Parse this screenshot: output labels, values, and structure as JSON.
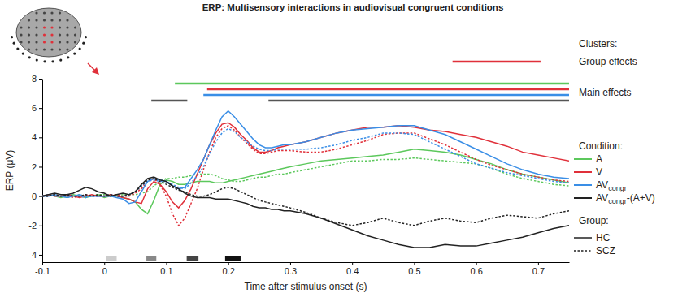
{
  "chart_data": {
    "type": "line",
    "title": "ERP: Multisensory interactions in audiovisual congruent conditions",
    "x_label": "Time after stimulus onset (s)",
    "y_label": "ERP (μV)",
    "xlim": [
      -0.1,
      0.75
    ],
    "xticks": [
      -0.1,
      0,
      0.1,
      0.2,
      0.3,
      0.4,
      0.5,
      0.6,
      0.7
    ],
    "ylim": [
      -4.5,
      8
    ],
    "yticks": [
      -4,
      -2,
      0,
      2,
      4,
      6,
      8
    ],
    "legend": "right",
    "x": [
      -0.1,
      -0.09,
      -0.08,
      -0.07,
      -0.06,
      -0.05,
      -0.04,
      -0.03,
      -0.02,
      -0.01,
      0,
      0.01,
      0.02,
      0.03,
      0.04,
      0.05,
      0.06,
      0.07,
      0.08,
      0.09,
      0.1,
      0.11,
      0.12,
      0.13,
      0.14,
      0.15,
      0.16,
      0.17,
      0.18,
      0.19,
      0.2,
      0.21,
      0.22,
      0.23,
      0.24,
      0.25,
      0.26,
      0.27,
      0.28,
      0.29,
      0.3,
      0.325,
      0.35,
      0.375,
      0.4,
      0.425,
      0.45,
      0.475,
      0.5,
      0.525,
      0.55,
      0.575,
      0.6,
      0.625,
      0.65,
      0.675,
      0.7,
      0.725,
      0.75
    ],
    "series": [
      {
        "name": "A",
        "group": "HC",
        "color": "#5cc85c",
        "line_style": "solid",
        "values": [
          0,
          0.1,
          0,
          -0.1,
          0,
          0.1,
          0,
          -0.1,
          0,
          0.1,
          -0.1,
          0,
          0.1,
          -0.1,
          -0.2,
          -0.4,
          -0.9,
          -1.2,
          -0.3,
          0.8,
          1.1,
          1.0,
          0.8,
          0.8,
          0.9,
          1.0,
          1.0,
          1.0,
          0.9,
          0.9,
          1.0,
          1.1,
          1.2,
          1.3,
          1.4,
          1.5,
          1.6,
          1.7,
          1.8,
          1.9,
          2.0,
          2.2,
          2.4,
          2.5,
          2.6,
          2.7,
          2.8,
          3.0,
          3.2,
          3.1,
          3.0,
          2.8,
          2.5,
          2.2,
          1.8,
          1.5,
          1.3,
          1.1,
          0.9
        ]
      },
      {
        "name": "A",
        "group": "SCZ",
        "color": "#5cc85c",
        "line_style": "dotted",
        "values": [
          0,
          0,
          0.1,
          0,
          -0.1,
          0,
          0.1,
          0,
          0,
          0.1,
          0.1,
          0,
          0,
          0.1,
          0.1,
          0.1,
          0.2,
          0.3,
          0.7,
          1.0,
          1.2,
          1.2,
          1.3,
          1.3,
          1.4,
          1.5,
          1.5,
          1.5,
          1.4,
          1.2,
          1.1,
          1.0,
          1.0,
          1.1,
          1.2,
          1.3,
          1.3,
          1.4,
          1.5,
          1.5,
          1.6,
          1.8,
          2.0,
          2.2,
          2.4,
          2.4,
          2.5,
          2.5,
          2.6,
          2.5,
          2.4,
          2.3,
          2.2,
          1.9,
          1.5,
          1.2,
          1.0,
          0.8,
          0.7
        ]
      },
      {
        "name": "V",
        "group": "HC",
        "color": "#e0303a",
        "line_style": "solid",
        "values": [
          0,
          0.1,
          0,
          0,
          0.1,
          0,
          -0.1,
          0,
          0.1,
          0,
          0,
          0.1,
          0,
          -0.1,
          -0.2,
          -0.4,
          -0.5,
          0.5,
          1.0,
          0.8,
          0.3,
          -0.4,
          -0.8,
          -0.3,
          0.5,
          1.5,
          2.5,
          3.5,
          4.3,
          4.9,
          5.0,
          4.7,
          4.2,
          3.8,
          3.3,
          3.0,
          3.0,
          3.1,
          3.3,
          3.4,
          3.5,
          3.7,
          4.0,
          4.3,
          4.5,
          4.7,
          4.7,
          4.8,
          4.7,
          4.5,
          4.4,
          4.2,
          4.0,
          3.7,
          3.4,
          3.0,
          2.8,
          2.6,
          2.4
        ]
      },
      {
        "name": "V",
        "group": "SCZ",
        "color": "#e0303a",
        "line_style": "dotted",
        "values": [
          0,
          0,
          0.1,
          0,
          0,
          -0.1,
          0,
          0.1,
          0,
          0,
          0,
          0,
          0.1,
          0,
          0,
          0.2,
          0.5,
          1.0,
          1.2,
          0.8,
          0,
          -1.2,
          -2.0,
          -1.5,
          -0.5,
          0.5,
          1.8,
          3.0,
          4.0,
          4.6,
          4.8,
          4.5,
          4.0,
          3.6,
          3.2,
          2.9,
          2.9,
          3.0,
          3.1,
          3.1,
          3.1,
          3.0,
          3.0,
          3.2,
          3.5,
          3.8,
          4.2,
          4.3,
          4.3,
          3.9,
          3.5,
          3.0,
          2.5,
          2.1,
          1.8,
          1.5,
          1.3,
          1.1,
          1.0
        ]
      },
      {
        "name": "AVcongr",
        "group": "HC",
        "color": "#3a8ee6",
        "line_style": "solid",
        "values": [
          0,
          0,
          0.1,
          0,
          -0.1,
          0,
          0.1,
          0,
          0,
          0,
          0,
          0,
          -0.1,
          -0.2,
          -0.5,
          -0.4,
          0.3,
          1.0,
          1.2,
          1.1,
          1.0,
          0.7,
          0.5,
          0.6,
          1.2,
          1.8,
          2.5,
          3.5,
          4.5,
          5.4,
          5.8,
          5.4,
          4.9,
          4.4,
          3.9,
          3.5,
          3.3,
          3.3,
          3.4,
          3.5,
          3.5,
          3.7,
          4.0,
          4.3,
          4.5,
          4.6,
          4.7,
          4.8,
          4.8,
          4.5,
          4.2,
          3.7,
          3.2,
          2.7,
          2.2,
          1.8,
          1.5,
          1.3,
          1.2
        ]
      },
      {
        "name": "AVcongr",
        "group": "SCZ",
        "color": "#3a8ee6",
        "line_style": "dotted",
        "values": [
          0,
          0.1,
          0,
          0,
          0.1,
          0,
          0,
          -0.1,
          0,
          0,
          0,
          0.1,
          0,
          0,
          0.1,
          0.3,
          0.7,
          1.0,
          1.1,
          1.0,
          1.0,
          0.8,
          0.6,
          0.5,
          0.9,
          1.4,
          2.0,
          2.9,
          3.7,
          4.3,
          4.6,
          4.4,
          4.0,
          3.7,
          3.4,
          3.2,
          3.1,
          3.1,
          3.2,
          3.2,
          3.2,
          3.2,
          3.3,
          3.5,
          3.8,
          4.0,
          4.3,
          4.3,
          4.2,
          3.7,
          3.2,
          2.7,
          2.2,
          1.9,
          1.6,
          1.4,
          1.2,
          1.0,
          0.9
        ]
      },
      {
        "name": "AVcongr-(A+V)",
        "group": "HC",
        "color": "#222222",
        "line_style": "solid",
        "values": [
          0,
          0.1,
          0.2,
          0.1,
          0.1,
          0.2,
          0.4,
          0.6,
          0.5,
          0.3,
          0.2,
          0,
          0.1,
          0.2,
          0.1,
          0.3,
          0.8,
          1.2,
          1.3,
          1.1,
          1.0,
          0.7,
          0.5,
          0.2,
          0,
          -0.1,
          -0.1,
          -0.1,
          -0.2,
          -0.2,
          -0.2,
          -0.3,
          -0.4,
          -0.5,
          -0.7,
          -0.8,
          -0.8,
          -0.9,
          -0.9,
          -1.0,
          -1.0,
          -1.2,
          -1.5,
          -1.9,
          -2.3,
          -2.7,
          -3.0,
          -3.3,
          -3.5,
          -3.5,
          -3.3,
          -3.4,
          -3.4,
          -3.2,
          -3.0,
          -2.8,
          -2.5,
          -2.2,
          -2.0
        ]
      },
      {
        "name": "AVcongr-(A+V)",
        "group": "SCZ",
        "color": "#222222",
        "line_style": "dotted",
        "values": [
          0,
          0,
          0.1,
          0,
          0.1,
          0,
          0,
          0.1,
          0,
          0.1,
          0,
          0.1,
          0,
          0,
          0.1,
          0.3,
          0.7,
          1.1,
          1.2,
          1.0,
          0.8,
          0.6,
          0.4,
          0.3,
          0.1,
          0,
          0,
          0.1,
          0.3,
          0.5,
          0.6,
          0.5,
          0.3,
          0.1,
          -0.1,
          -0.3,
          -0.4,
          -0.5,
          -0.6,
          -0.7,
          -0.8,
          -1.1,
          -1.5,
          -1.8,
          -2.0,
          -1.8,
          -1.5,
          -1.8,
          -2.0,
          -1.7,
          -1.5,
          -1.7,
          -1.8,
          -1.5,
          -1.3,
          -1.4,
          -1.5,
          -1.2,
          -1.0
        ]
      }
    ],
    "legend_titles": {
      "condition": "Condition:",
      "group": "Group:"
    },
    "conditions": [
      {
        "name": "A",
        "color": "#5cc85c"
      },
      {
        "name": "V",
        "color": "#e0303a"
      },
      {
        "name": "AV",
        "subscript": "congr",
        "color": "#3a8ee6"
      },
      {
        "name": "AV",
        "subscript": "congr",
        "suffix": "-(A+V)",
        "color": "#222222"
      }
    ],
    "groups": [
      {
        "name": "HC",
        "line_style": "solid"
      },
      {
        "name": "SCZ",
        "line_style": "dotted"
      }
    ],
    "clusters": {
      "title": "Clusters:",
      "items": [
        {
          "label": "Group effects",
          "rows": [
            {
              "color": "#e0303a",
              "spans": [
                [
                  0.562,
                  0.704
                ]
              ]
            }
          ]
        },
        {
          "label": "Main effects",
          "rows": [
            {
              "color": "#5cc85c",
              "spans": [
                [
                  0.114,
                  0.75
                ]
              ]
            },
            {
              "color": "#e0303a",
              "spans": [
                [
                  0.166,
                  0.75
                ]
              ]
            },
            {
              "color": "#3a8ee6",
              "spans": [
                [
                  0.16,
                  0.75
                ]
              ]
            },
            {
              "color": "#555555",
              "spans": [
                [
                  0.076,
                  0.134
                ],
                [
                  0.265,
                  0.75
                ]
              ]
            }
          ]
        }
      ]
    },
    "windows": [
      {
        "start": 0.003,
        "end": 0.02,
        "color": "#cccccc"
      },
      {
        "start": 0.068,
        "end": 0.084,
        "color": "#888888"
      },
      {
        "start": 0.133,
        "end": 0.152,
        "color": "#444444"
      },
      {
        "start": 0.195,
        "end": 0.22,
        "color": "#111111"
      }
    ]
  }
}
